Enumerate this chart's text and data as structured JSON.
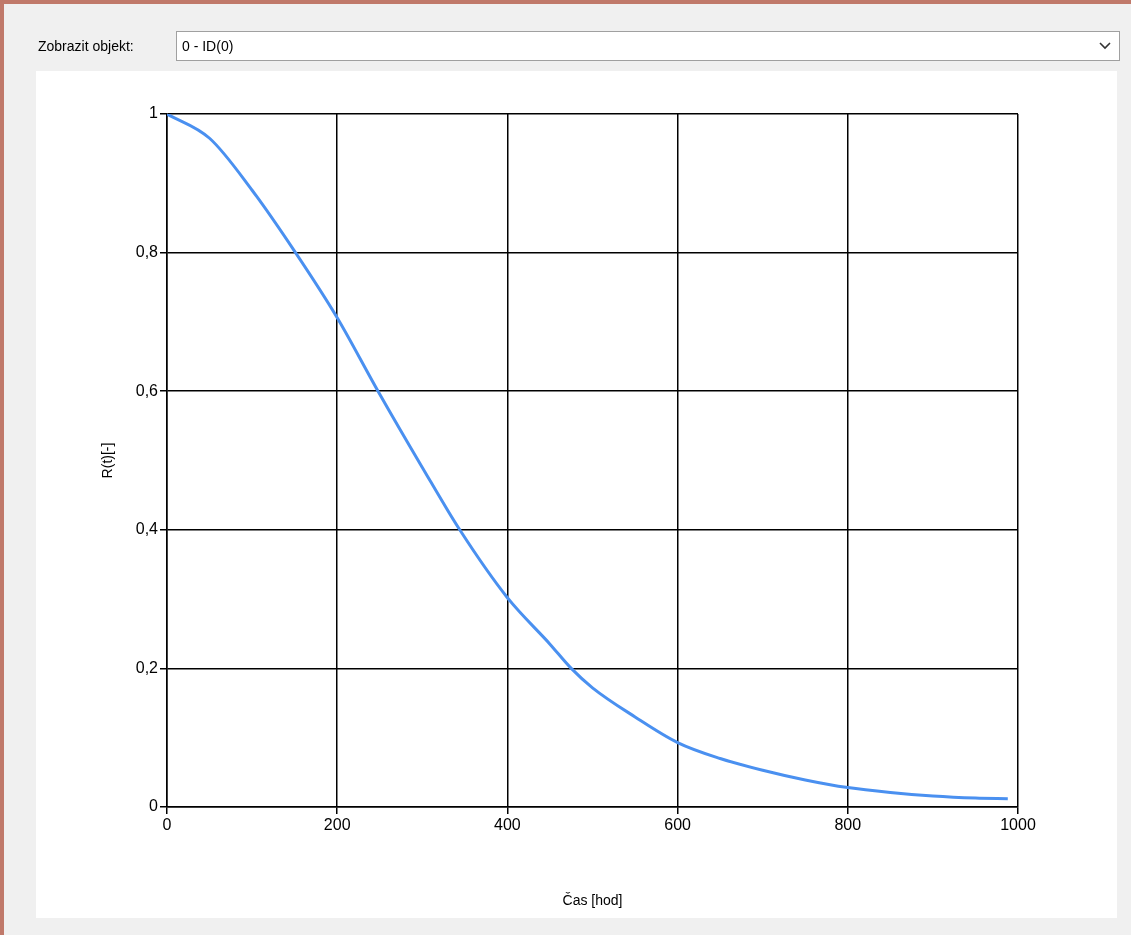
{
  "chart_data": {
    "type": "line",
    "xlabel": "Čas [hod]",
    "ylabel": "R(t)[-]",
    "annotations": [
      "Zobrazit objekt:",
      "0 - ID(0)"
    ],
    "x": [
      0,
      50,
      100,
      151,
      200,
      248,
      300,
      344,
      400,
      450,
      475,
      500,
      550,
      600,
      650,
      700,
      750,
      800,
      850,
      900,
      950,
      988
    ],
    "series": [
      {
        "color": "#4a90f0",
        "values": [
          1,
          0.965,
          0.89,
          0.8,
          0.706,
          0.6,
          0.49,
          0.4,
          0.302,
          0.235,
          0.2,
          0.172,
          0.13,
          0.093,
          0.07,
          0.053,
          0.039,
          0.028,
          0.021,
          0.016,
          0.013,
          0.012
        ]
      }
    ],
    "xlim": [
      0,
      1000
    ],
    "xticks": [
      0,
      200,
      400,
      600,
      800,
      1000
    ],
    "ylim": [
      0,
      1
    ],
    "yticks": [
      0,
      {
        "value": 0.2,
        "label": "0,2"
      },
      {
        "value": 0.4,
        "label": "0,4"
      },
      {
        "value": 0.6,
        "label": "0,6"
      },
      {
        "value": 0.8,
        "label": "0,8"
      },
      1
    ],
    "grid": true,
    "legend": false,
    "marker": "none",
    "line_style": "solid"
  }
}
